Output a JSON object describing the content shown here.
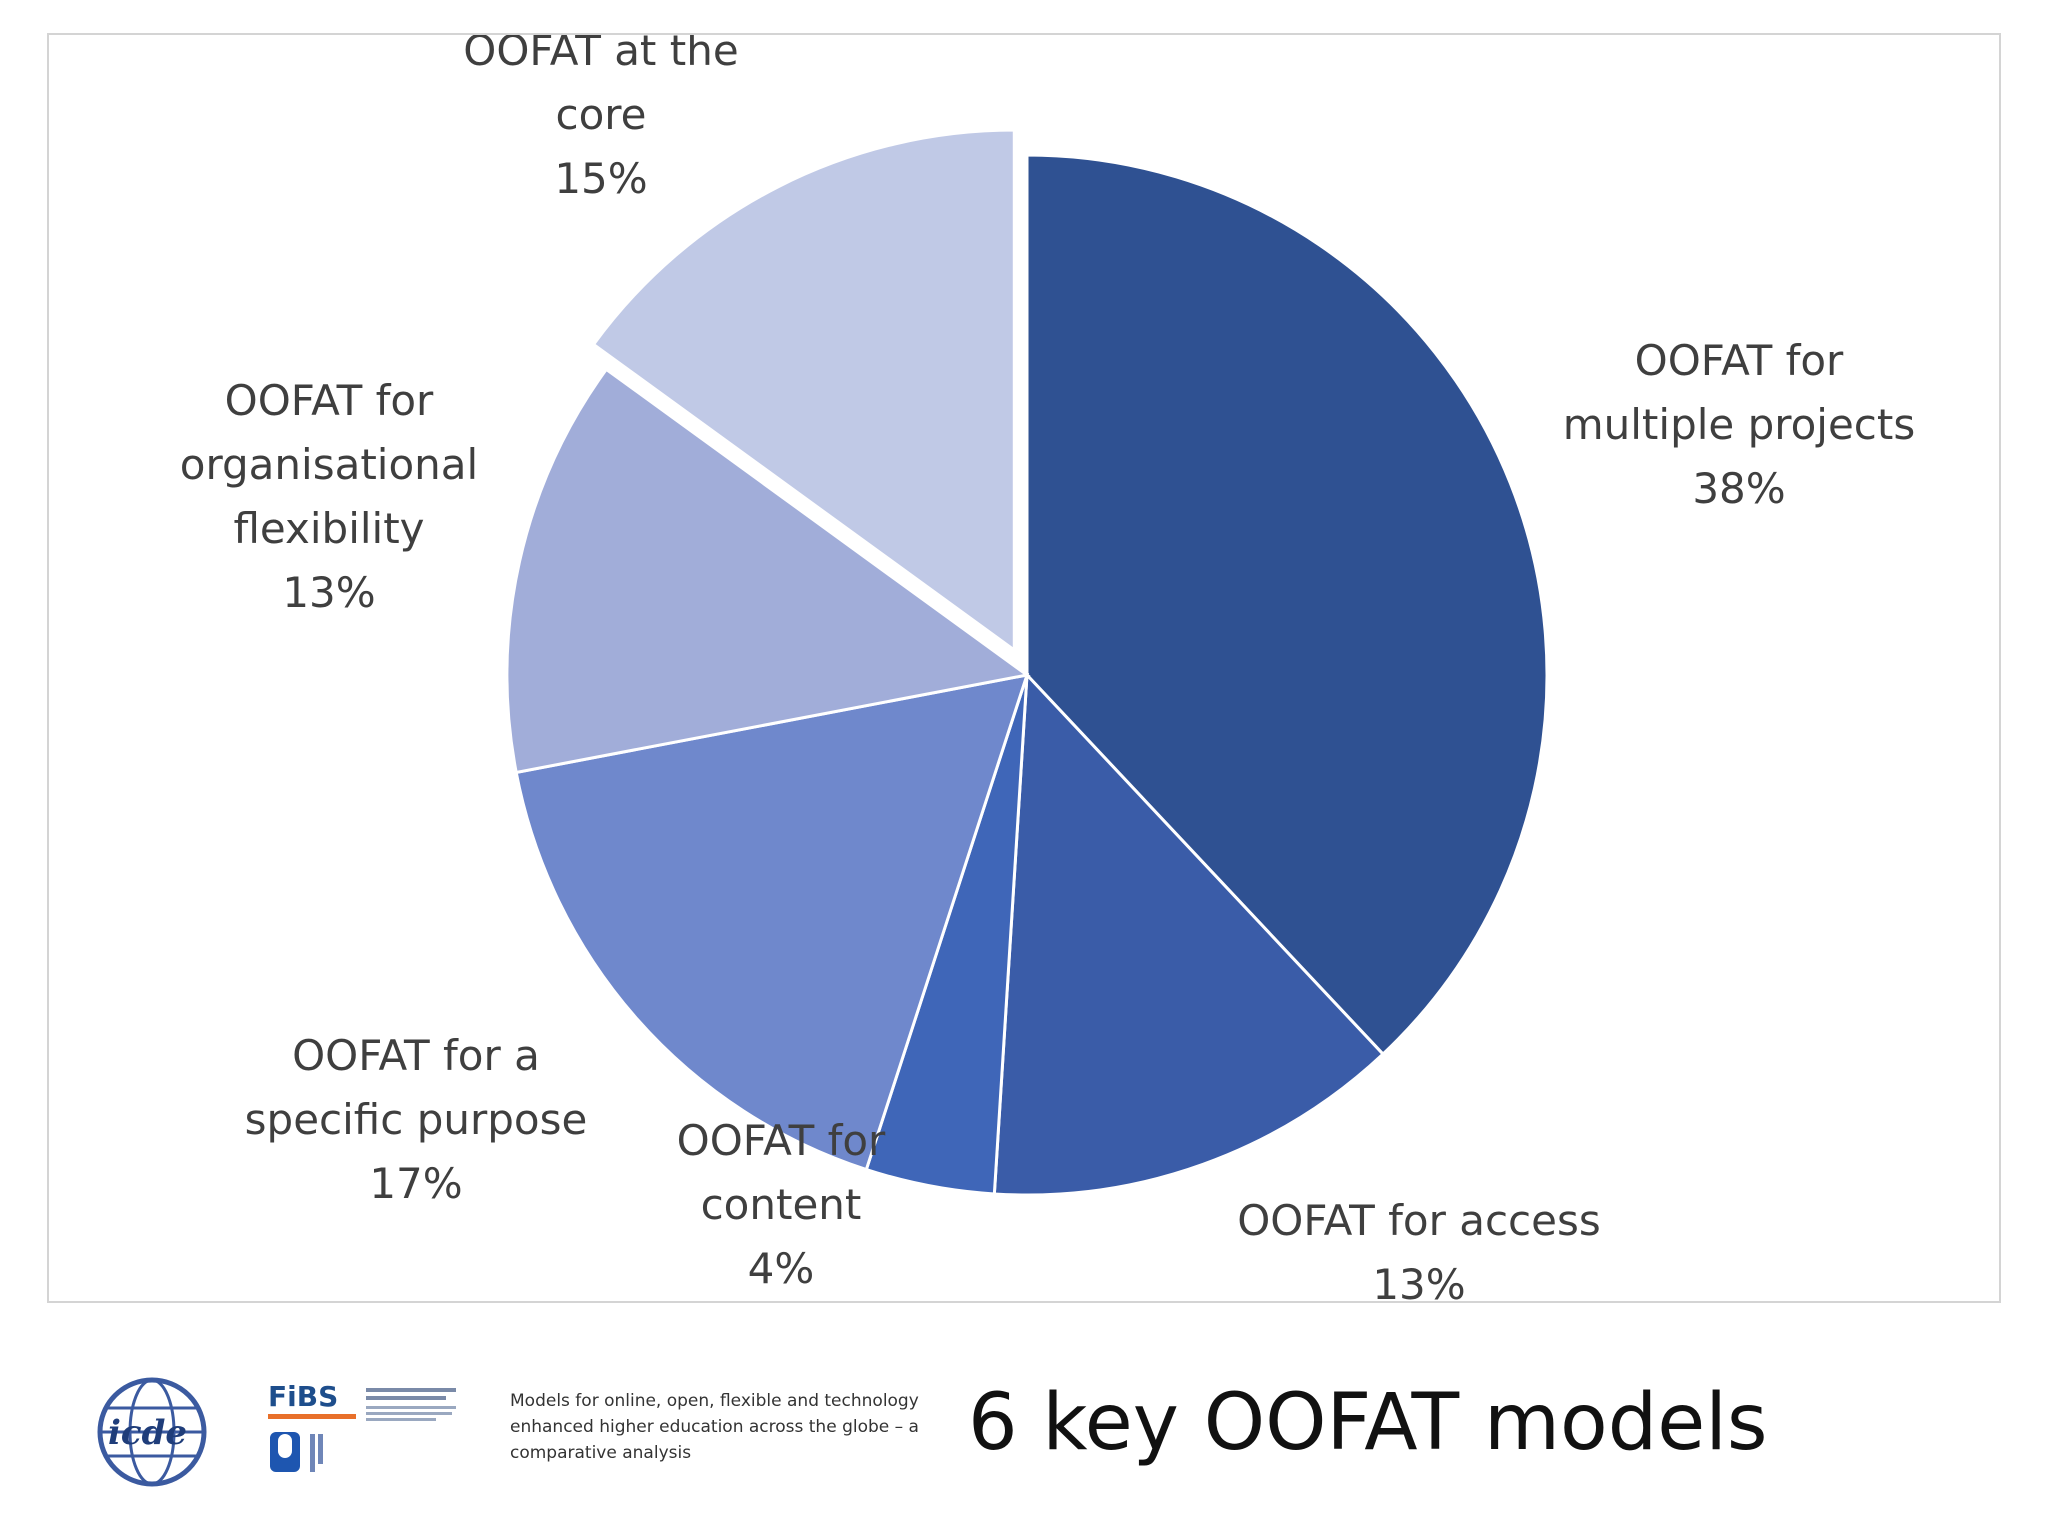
{
  "chart_data": {
    "type": "pie",
    "title": "",
    "start_angle_deg": 0,
    "direction": "clockwise",
    "exploded": [
      "OOFAT at the core"
    ],
    "slices": [
      {
        "label_lines": [
          "OOFAT for",
          "multiple projects"
        ],
        "label": "OOFAT for multiple projects",
        "value": 38,
        "value_label": "38%",
        "color": "#2f5192"
      },
      {
        "label_lines": [
          "OOFAT for access"
        ],
        "label": "OOFAT for access",
        "value": 13,
        "value_label": "13%",
        "color": "#3a5ca8"
      },
      {
        "label_lines": [
          "OOFAT for",
          "content"
        ],
        "label": "OOFAT for content",
        "value": 4,
        "value_label": "4%",
        "color": "#3f66b8"
      },
      {
        "label_lines": [
          "OOFAT for a",
          "specific purpose"
        ],
        "label": "OOFAT for a specific purpose",
        "value": 17,
        "value_label": "17%",
        "color": "#6f88cc"
      },
      {
        "label_lines": [
          "OOFAT for",
          "organisational",
          "flexibility"
        ],
        "label": "OOFAT for organisational flexibility",
        "value": 13,
        "value_label": "13%",
        "color": "#a1add9"
      },
      {
        "label_lines": [
          "OOFAT at the",
          "core"
        ],
        "label": "OOFAT at the core",
        "value": 15,
        "value_label": "15%",
        "color": "#c0c9e6"
      }
    ]
  },
  "footer": {
    "description": "Models for online, open, flexible and technology enhanced higher education across the globe – a comparative analysis",
    "title": "6 key OOFAT models",
    "logos": {
      "icde": "icde",
      "fibs": "FiBS",
      "open_university": "open-university-logo"
    }
  }
}
